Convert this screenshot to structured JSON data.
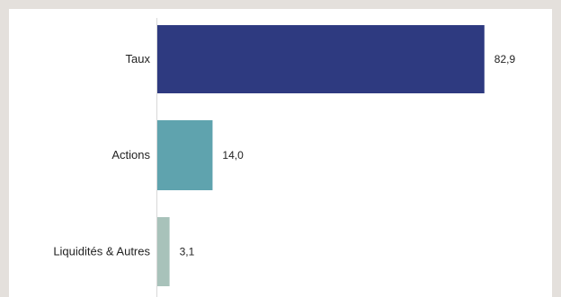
{
  "chart_data": {
    "type": "bar",
    "orientation": "horizontal",
    "categories": [
      "Taux",
      "Actions",
      "Liquidités & Autres"
    ],
    "values": [
      82.9,
      14.0,
      3.1
    ],
    "value_labels": [
      "82,9",
      "14,0",
      "3,1"
    ],
    "colors": [
      "#2e3a80",
      "#5fa3ae",
      "#a8c2ba"
    ],
    "xlim": [
      0,
      85
    ],
    "grid": false,
    "legend": "none"
  }
}
